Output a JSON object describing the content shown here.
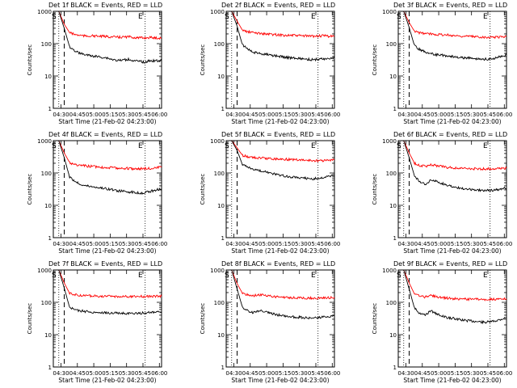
{
  "figure": {
    "x_label": "Start Time (21-Feb-02 04:23:00)",
    "y_label": "Counts/sec",
    "marker_s": "S",
    "marker_e": "E",
    "colors": {
      "events": "#000000",
      "lld": "#ff0000",
      "axes": "#000000"
    }
  },
  "chart_data": [
    {
      "type": "line",
      "title": "Det 1f BLACK = Events, RED = LLD",
      "yscale": "log",
      "ylim": [
        1,
        1000
      ],
      "xlim": [
        "04:23",
        "06:02"
      ],
      "xticks": [
        "04:30",
        "04:45",
        "05:00",
        "05:15",
        "05:30",
        "05:45",
        "06:00"
      ],
      "yticks": [
        "1",
        "10",
        "100",
        "1000"
      ],
      "dotted_lines_at": [
        "04:28",
        "05:47"
      ],
      "dashed_line_at": "04:33",
      "series": [
        {
          "name": "LLD",
          "values": [
            1000,
            400,
            220,
            190,
            180,
            170,
            175,
            170,
            168,
            165,
            160,
            158,
            160,
            162,
            155,
            150,
            152,
            155,
            150,
            148
          ]
        },
        {
          "name": "Events",
          "values": [
            1000,
            300,
            80,
            60,
            50,
            45,
            42,
            40,
            38,
            36,
            32,
            30,
            31,
            33,
            29,
            28,
            27,
            30,
            29,
            31
          ]
        }
      ]
    },
    {
      "type": "line",
      "title": "Det 2f BLACK = Events, RED = LLD",
      "yscale": "log",
      "ylim": [
        1,
        1000
      ],
      "xlim": [
        "04:23",
        "06:02"
      ],
      "xticks": [
        "04:30",
        "04:45",
        "05:00",
        "05:15",
        "05:30",
        "05:45",
        "06:00"
      ],
      "yticks": [
        "1",
        "10",
        "100",
        "1000"
      ],
      "dotted_lines_at": [
        "04:28",
        "05:47"
      ],
      "dashed_line_at": "04:33",
      "series": [
        {
          "name": "LLD",
          "values": [
            1000,
            500,
            260,
            230,
            220,
            210,
            200,
            195,
            190,
            185,
            182,
            180,
            178,
            175,
            172,
            170,
            172,
            175,
            170,
            168
          ]
        },
        {
          "name": "Events",
          "values": [
            1000,
            350,
            90,
            70,
            55,
            50,
            48,
            45,
            42,
            40,
            38,
            36,
            35,
            34,
            33,
            32,
            33,
            34,
            35,
            36
          ]
        }
      ]
    },
    {
      "type": "line",
      "title": "Det 3f BLACK = Events, RED = LLD",
      "yscale": "log",
      "ylim": [
        1,
        1000
      ],
      "xlim": [
        "04:23",
        "06:02"
      ],
      "xticks": [
        "04:30",
        "04:45",
        "05:00",
        "05:15",
        "05:30",
        "05:45",
        "06:00"
      ],
      "yticks": [
        "1",
        "10",
        "100",
        "1000"
      ],
      "dotted_lines_at": [
        "04:28",
        "05:47"
      ],
      "dashed_line_at": "04:33",
      "series": [
        {
          "name": "LLD",
          "values": [
            1000,
            450,
            240,
            215,
            205,
            200,
            195,
            190,
            185,
            180,
            175,
            170,
            168,
            165,
            162,
            160,
            158,
            160,
            162,
            165
          ]
        },
        {
          "name": "Events",
          "values": [
            1000,
            320,
            85,
            65,
            55,
            50,
            46,
            44,
            42,
            40,
            38,
            37,
            36,
            35,
            34,
            33,
            34,
            36,
            40,
            45
          ]
        }
      ]
    },
    {
      "type": "line",
      "title": "Det 4f BLACK = Events, RED = LLD",
      "yscale": "log",
      "ylim": [
        1,
        1000
      ],
      "xlim": [
        "04:23",
        "06:02"
      ],
      "xticks": [
        "04:30",
        "04:45",
        "05:00",
        "05:15",
        "05:30",
        "05:45",
        "06:00"
      ],
      "yticks": [
        "1",
        "10",
        "100",
        "1000"
      ],
      "dotted_lines_at": [
        "04:28",
        "05:47"
      ],
      "dashed_line_at": "04:33",
      "series": [
        {
          "name": "LLD",
          "values": [
            1000,
            420,
            210,
            180,
            170,
            165,
            160,
            155,
            150,
            148,
            145,
            142,
            140,
            138,
            136,
            135,
            138,
            140,
            145,
            150
          ]
        },
        {
          "name": "Events",
          "values": [
            1000,
            300,
            75,
            55,
            45,
            40,
            38,
            36,
            34,
            32,
            30,
            28,
            27,
            26,
            25,
            24,
            25,
            27,
            30,
            33
          ]
        }
      ]
    },
    {
      "type": "line",
      "title": "Det 5f BLACK = Events, RED = LLD",
      "yscale": "log",
      "ylim": [
        1,
        1000
      ],
      "xlim": [
        "04:23",
        "06:02"
      ],
      "xticks": [
        "04:30",
        "04:45",
        "05:00",
        "05:15",
        "05:30",
        "05:45",
        "06:00"
      ],
      "yticks": [
        "1",
        "10",
        "100",
        "1000"
      ],
      "dotted_lines_at": [
        "04:28",
        "05:47"
      ],
      "dashed_line_at": "04:33",
      "series": [
        {
          "name": "LLD",
          "values": [
            1000,
            600,
            350,
            320,
            300,
            290,
            285,
            280,
            275,
            270,
            265,
            260,
            255,
            250,
            245,
            240,
            238,
            240,
            245,
            250
          ]
        },
        {
          "name": "Events",
          "values": [
            1000,
            500,
            180,
            150,
            130,
            120,
            110,
            100,
            92,
            85,
            80,
            75,
            72,
            70,
            68,
            66,
            68,
            72,
            78,
            85
          ]
        }
      ]
    },
    {
      "type": "line",
      "title": "Det 6f BLACK = Events, RED = LLD",
      "yscale": "log",
      "ylim": [
        1,
        1000
      ],
      "xlim": [
        "04:23",
        "06:02"
      ],
      "xticks": [
        "04:30",
        "04:45",
        "05:00",
        "05:15",
        "05:30",
        "05:45",
        "06:00"
      ],
      "yticks": [
        "1",
        "10",
        "100",
        "1000"
      ],
      "dotted_lines_at": [
        "04:28",
        "05:47"
      ],
      "dashed_line_at": "04:33",
      "series": [
        {
          "name": "LLD",
          "values": [
            1000,
            420,
            200,
            170,
            160,
            180,
            170,
            160,
            150,
            145,
            140,
            138,
            136,
            135,
            134,
            133,
            135,
            138,
            140,
            142
          ]
        },
        {
          "name": "Events",
          "values": [
            1000,
            300,
            80,
            55,
            45,
            60,
            55,
            48,
            42,
            38,
            35,
            33,
            31,
            30,
            29,
            28,
            29,
            30,
            32,
            34
          ]
        }
      ]
    },
    {
      "type": "line",
      "title": "Det 7f BLACK = Events, RED = LLD",
      "yscale": "log",
      "ylim": [
        1,
        1000
      ],
      "xlim": [
        "04:23",
        "06:02"
      ],
      "xticks": [
        "04:30",
        "04:45",
        "05:00",
        "05:15",
        "05:30",
        "05:45",
        "06:00"
      ],
      "yticks": [
        "1",
        "10",
        "100",
        "1000"
      ],
      "dotted_lines_at": [
        "04:28",
        "05:47"
      ],
      "dashed_line_at": "04:33",
      "series": [
        {
          "name": "LLD",
          "values": [
            1000,
            400,
            190,
            170,
            165,
            160,
            158,
            156,
            155,
            154,
            153,
            152,
            151,
            150,
            150,
            151,
            152,
            153,
            154,
            155
          ]
        },
        {
          "name": "Events",
          "values": [
            1000,
            280,
            70,
            58,
            55,
            52,
            50,
            49,
            48,
            47,
            47,
            46,
            46,
            45,
            45,
            46,
            47,
            48,
            49,
            50
          ]
        }
      ]
    },
    {
      "type": "line",
      "title": "Det 8f BLACK = Events, RED = LLD",
      "yscale": "log",
      "ylim": [
        1,
        1000
      ],
      "xlim": [
        "04:23",
        "06:02"
      ],
      "xticks": [
        "04:30",
        "04:45",
        "05:00",
        "05:15",
        "05:30",
        "05:45",
        "06:00"
      ],
      "yticks": [
        "1",
        "10",
        "100",
        "1000"
      ],
      "dotted_lines_at": [
        "04:28",
        "05:47"
      ],
      "dashed_line_at": "04:33",
      "series": [
        {
          "name": "LLD",
          "values": [
            1000,
            380,
            190,
            170,
            160,
            170,
            165,
            155,
            150,
            145,
            142,
            140,
            138,
            136,
            135,
            135,
            136,
            138,
            140,
            145
          ]
        },
        {
          "name": "Events",
          "values": [
            1000,
            260,
            70,
            55,
            48,
            55,
            52,
            46,
            42,
            40,
            38,
            36,
            35,
            34,
            33,
            32,
            33,
            35,
            37,
            40
          ]
        }
      ]
    },
    {
      "type": "line",
      "title": "Det 9f BLACK = Events, RED = LLD",
      "yscale": "log",
      "ylim": [
        1,
        1000
      ],
      "xlim": [
        "04:23",
        "06:02"
      ],
      "xticks": [
        "04:30",
        "04:45",
        "05:00",
        "05:15",
        "05:30",
        "05:45",
        "06:00"
      ],
      "yticks": [
        "1",
        "10",
        "100",
        "1000"
      ],
      "dotted_lines_at": [
        "04:28",
        "05:47"
      ],
      "dashed_line_at": "04:33",
      "series": [
        {
          "name": "LLD",
          "values": [
            1000,
            400,
            180,
            155,
            145,
            165,
            150,
            140,
            135,
            130,
            128,
            126,
            125,
            124,
            123,
            122,
            124,
            126,
            128,
            130
          ]
        },
        {
          "name": "Events",
          "values": [
            1000,
            260,
            65,
            45,
            40,
            55,
            45,
            38,
            34,
            32,
            30,
            28,
            27,
            26,
            25,
            24,
            25,
            27,
            30,
            34
          ]
        }
      ]
    }
  ]
}
